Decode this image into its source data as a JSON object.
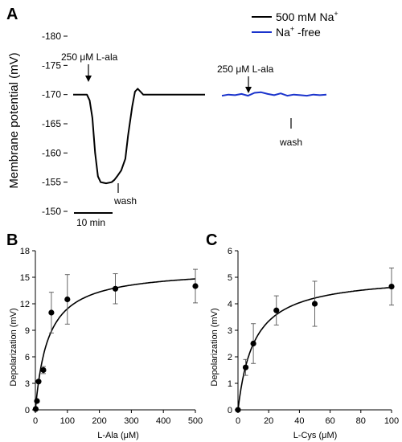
{
  "panels": {
    "a": {
      "label": "A"
    },
    "b": {
      "label": "B"
    },
    "c": {
      "label": "C"
    }
  },
  "chart_data": [
    {
      "type": "line",
      "panel": "A",
      "ylabel": "Membrane potential (mV)",
      "yticks": [
        "-180",
        "-175",
        "-170",
        "-165",
        "-160",
        "-155",
        "-150"
      ],
      "ylim": [
        -180,
        -150
      ],
      "y_inverted": true,
      "scale_bar_label": "10 min",
      "legend": {
        "placement": "top-right",
        "items": [
          {
            "sup_base": "500 mM Na",
            "sup": "+",
            "sup_after": "",
            "color": "#000000"
          },
          {
            "sup_base": "Na",
            "sup": "+",
            "sup_after": " -free",
            "color": "#1a33cc"
          }
        ]
      },
      "annotations": {
        "lala_1": "250 μM L-ala",
        "lala_2": "250 μM L-ala",
        "wash_1": "wash",
        "wash_2": "wash"
      },
      "series": [
        {
          "color": "#000000",
          "x": [
            0,
            5,
            10,
            12,
            14,
            16,
            18,
            20,
            24,
            28,
            30,
            32,
            35,
            38,
            40,
            43,
            45,
            47,
            49,
            51,
            54,
            60,
            70,
            80,
            90,
            96
          ],
          "y": [
            -170,
            -170,
            -170,
            -169,
            -166,
            -160,
            -156,
            -155,
            -154.8,
            -155,
            -155.4,
            -156,
            -157,
            -159,
            -163,
            -168,
            -170.5,
            -171,
            -170.5,
            -170,
            -170,
            -170,
            -170,
            -170,
            -170,
            -170
          ]
        },
        {
          "color": "#1a33cc",
          "x": [
            0,
            6,
            12,
            18,
            24,
            30,
            36,
            42,
            48,
            54,
            60,
            66,
            72,
            78,
            84,
            90,
            96
          ],
          "y": [
            -169.8,
            -170,
            -169.9,
            -170.1,
            -169.8,
            -170.3,
            -170.4,
            -170.1,
            -169.9,
            -170.2,
            -169.8,
            -170,
            -169.9,
            -169.8,
            -170,
            -169.9,
            -170
          ]
        }
      ]
    },
    {
      "type": "scatter",
      "panel": "B",
      "xlabel": "L-Ala (μM)",
      "ylabel": "Depolarization (mV)",
      "xlim": [
        0,
        500
      ],
      "ylim": [
        0,
        18
      ],
      "xticks": [
        0,
        100,
        200,
        300,
        400,
        500
      ],
      "yticks": [
        0,
        3,
        6,
        9,
        12,
        15,
        18
      ],
      "fit": {
        "vmax": 16.0,
        "km": 40
      },
      "points": [
        {
          "x": 1,
          "y": 0.1,
          "err": 0
        },
        {
          "x": 5,
          "y": 1.0,
          "err": 0
        },
        {
          "x": 10,
          "y": 3.2,
          "err": 0
        },
        {
          "x": 25,
          "y": 4.5,
          "err": 0.4
        },
        {
          "x": 50,
          "y": 11.0,
          "err": 2.3
        },
        {
          "x": 100,
          "y": 12.5,
          "err": 2.8
        },
        {
          "x": 250,
          "y": 13.7,
          "err": 1.7
        },
        {
          "x": 500,
          "y": 14.0,
          "err": 1.9
        }
      ]
    },
    {
      "type": "scatter",
      "panel": "C",
      "xlabel": "L-Cys (μM)",
      "ylabel": "Depolarization (mV)",
      "xlim": [
        0,
        100
      ],
      "ylim": [
        0,
        6
      ],
      "xticks": [
        0,
        20,
        40,
        60,
        80,
        100
      ],
      "yticks": [
        0,
        1,
        2,
        3,
        4,
        5,
        6
      ],
      "fit": {
        "vmax": 5.1,
        "km": 10.5
      },
      "points": [
        {
          "x": 0,
          "y": 0.0,
          "err": 0
        },
        {
          "x": 5,
          "y": 1.6,
          "err": 0.3
        },
        {
          "x": 10,
          "y": 2.5,
          "err": 0.75
        },
        {
          "x": 25,
          "y": 3.75,
          "err": 0.55
        },
        {
          "x": 50,
          "y": 4.0,
          "err": 0.85
        },
        {
          "x": 100,
          "y": 4.65,
          "err": 0.7
        }
      ]
    }
  ]
}
